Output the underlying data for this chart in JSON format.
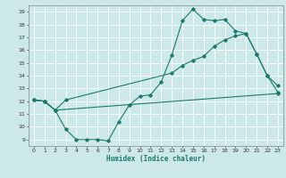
{
  "title": "",
  "xlabel": "Humidex (Indice chaleur)",
  "xlim": [
    -0.5,
    23.5
  ],
  "ylim": [
    8.5,
    19.5
  ],
  "yticks": [
    9,
    10,
    11,
    12,
    13,
    14,
    15,
    16,
    17,
    18,
    19
  ],
  "xticks": [
    0,
    1,
    2,
    3,
    4,
    5,
    6,
    7,
    8,
    9,
    10,
    11,
    12,
    13,
    14,
    15,
    16,
    17,
    18,
    19,
    20,
    21,
    22,
    23
  ],
  "bg_color": "#cce8e8",
  "grid_color": "#ffffff",
  "line_color": "#1a7a6e",
  "line1_x": [
    0,
    1,
    2,
    3,
    4,
    5,
    6,
    7,
    8,
    9,
    10,
    11,
    12,
    13,
    14,
    15,
    16,
    17,
    18,
    19,
    20,
    21,
    22,
    23
  ],
  "line1_y": [
    12.1,
    12.0,
    11.3,
    9.8,
    9.0,
    9.0,
    9.0,
    8.9,
    10.4,
    11.7,
    12.4,
    12.5,
    13.5,
    15.6,
    18.3,
    19.2,
    18.4,
    18.3,
    18.4,
    17.5,
    17.3,
    15.7,
    14.0,
    13.2
  ],
  "line2_x": [
    0,
    1,
    2,
    3,
    13,
    14,
    15,
    16,
    17,
    18,
    19,
    20,
    21,
    22,
    23
  ],
  "line2_y": [
    12.1,
    12.0,
    11.3,
    12.1,
    14.2,
    14.8,
    15.2,
    15.5,
    16.3,
    16.8,
    17.1,
    17.3,
    15.7,
    14.0,
    12.7
  ],
  "line3_x": [
    0,
    1,
    2,
    23
  ],
  "line3_y": [
    12.1,
    12.0,
    11.3,
    12.6
  ]
}
